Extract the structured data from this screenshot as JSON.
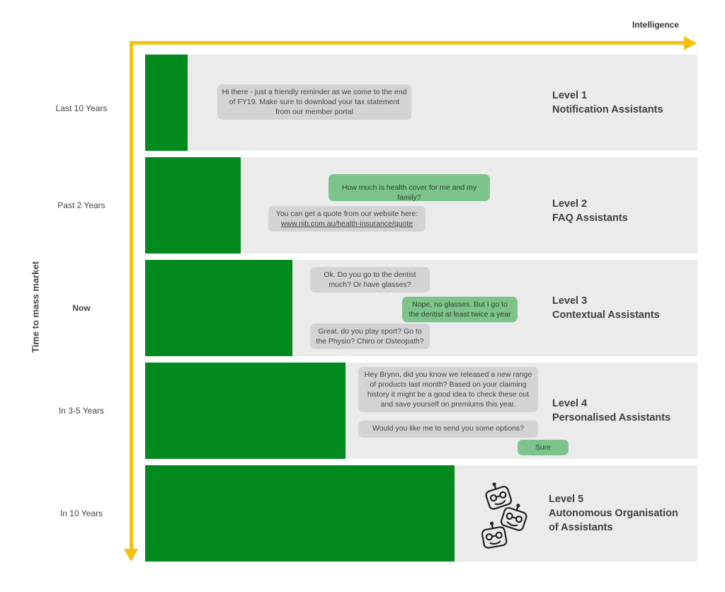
{
  "axes": {
    "x_title": "Intelligence",
    "y_title": "Time to mass market"
  },
  "rows": [
    {
      "time": "Last 10 Years",
      "level": "Level 1",
      "name": "Notification Assistants",
      "bar_fraction": 0.077,
      "messages": [
        {
          "text": "Hi there - just a friendly reminder as we come to the end of FY19. Make sure to download your tax statement from our member portal",
          "speaker": "assistant"
        }
      ]
    },
    {
      "time": "Past 2 Years",
      "level": "Level 2",
      "name": "FAQ Assistants",
      "bar_fraction": 0.173,
      "messages": [
        {
          "text": "How much is health cover for me and my family?",
          "speaker": "user"
        },
        {
          "text": "You can get a quote from our website here:",
          "link": "www.nib.com.au/health-insurance/quote",
          "speaker": "assistant"
        }
      ]
    },
    {
      "time": "Now",
      "level": "Level 3",
      "name": "Contextual Assistants",
      "bar_fraction": 0.267,
      "messages": [
        {
          "text": "Ok. Do you go to the dentist much? Or have glasses?",
          "speaker": "assistant"
        },
        {
          "text": "Nope, no glasses. But I go to the dentist at least twice a year",
          "speaker": "user"
        },
        {
          "text": "Great. do you play sport? Go to the Physio? Chiro or Osteopath?",
          "speaker": "assistant"
        }
      ]
    },
    {
      "time": "In 3-5 Years",
      "level": "Level 4",
      "name": "Personalised Assistants",
      "bar_fraction": 0.362,
      "messages": [
        {
          "text": "Hey Brynn, did you know we released a new range of products last month? Based on your claiming history it might be a good idea to check these out and save yourself on premiums this year.",
          "speaker": "assistant"
        },
        {
          "text": "Would you like me to send you some options?",
          "speaker": "assistant"
        },
        {
          "text": "Sure",
          "speaker": "user"
        }
      ]
    },
    {
      "time": "In 10 Years",
      "level": "Level 5",
      "name": "Autonomous Organisation of Assistants",
      "bar_fraction": 0.562,
      "icon": "robot-heads-icon",
      "messages": []
    }
  ],
  "colors": {
    "axis": "#f5c20f",
    "bar": "#028a1e",
    "row_background": "#ebebeb",
    "user_bubble": "#7cc48b",
    "assistant_bubble": "#d3d3d3"
  }
}
